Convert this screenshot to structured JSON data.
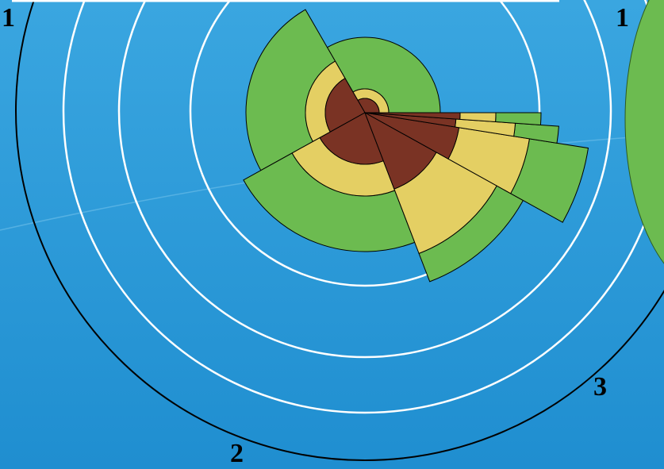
{
  "labels": [
    "1",
    "1",
    "2",
    "3"
  ]
}
